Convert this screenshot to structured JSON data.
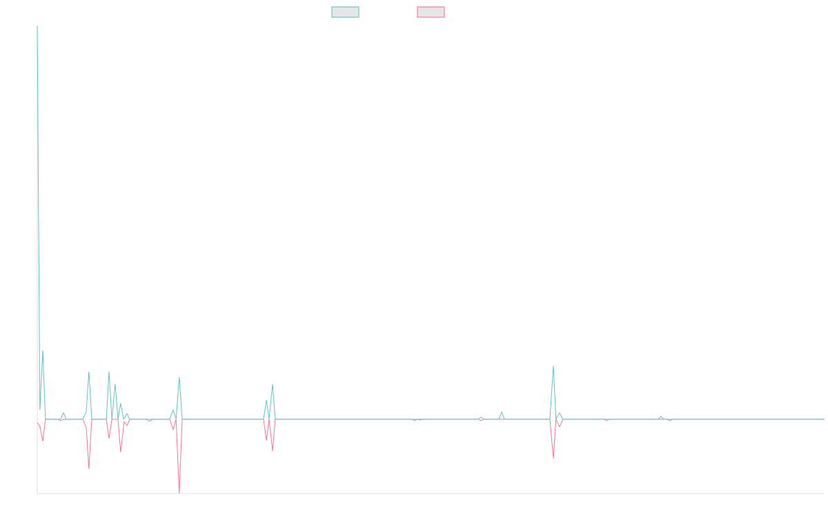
{
  "chart_data": {
    "type": "line",
    "xlim": [
      0,
      270
    ],
    "ylim": [
      -18.9,
      100
    ],
    "series": [
      {
        "color": "#4bc0c0",
        "x": [
          0,
          0.9,
          1.9,
          2.8,
          8.0,
          9.0,
          9.9,
          15.6,
          16.8,
          17.7,
          18.7,
          23.7,
          24.6,
          25.6,
          26.7,
          27.7,
          28.6,
          29.6,
          30.8,
          31.7,
          45.4,
          46.6,
          47.6,
          48.7,
          49.7,
          77.6,
          78.6,
          79.5,
          80.7,
          81.6,
          151.2,
          152.2,
          153.1,
          158.3,
          159.3,
          160.2,
          175.8,
          177.0,
          177.9,
          179.1,
          180.3,
          213.0,
          213.9,
          214.9,
          270
        ],
        "values": [
          100,
          2.3,
          17.5,
          0,
          0,
          1.6,
          0,
          0,
          1.8,
          12.1,
          0,
          0,
          12.1,
          0,
          8.9,
          0,
          4.0,
          0,
          1.4,
          0,
          0,
          2.3,
          0,
          10.7,
          0,
          0,
          4.9,
          0,
          8.9,
          0,
          0,
          0.5,
          0,
          0,
          1.8,
          0,
          0,
          13.5,
          0,
          1.6,
          0,
          0,
          0.7,
          0,
          0
        ]
      },
      {
        "color": "#ff6384",
        "x": [
          0,
          0.9,
          1.9,
          2.8,
          7.1,
          8.0,
          9.0,
          15.6,
          16.8,
          17.7,
          18.7,
          23.7,
          24.6,
          25.6,
          27.7,
          28.6,
          29.8,
          30.8,
          31.7,
          37.2,
          38.6,
          39.5,
          45.4,
          46.6,
          47.6,
          48.7,
          49.7,
          77.6,
          78.6,
          79.5,
          80.7,
          81.6,
          128.5,
          129.4,
          130.4,
          131.3,
          132.3,
          151.2,
          152.2,
          153.1,
          175.8,
          177.0,
          177.9,
          179.1,
          180.3,
          194.3,
          195.2,
          196.2,
          215.8,
          217.0,
          217.9,
          270
        ],
        "values": [
          -0.9,
          -1.8,
          -5.6,
          0,
          0,
          -0.4,
          0,
          0,
          -2.1,
          -12.6,
          0,
          0,
          -4.9,
          0,
          0,
          -8.4,
          -0.7,
          -1.6,
          0,
          0,
          -0.5,
          0,
          0,
          -2.6,
          0,
          -18.9,
          0,
          0,
          -5.4,
          0,
          -8.1,
          0,
          0,
          -0.4,
          0,
          -0.2,
          0,
          0,
          -0.4,
          0,
          0,
          -10.0,
          0,
          -1.9,
          0,
          0,
          -0.4,
          0,
          0,
          -0.4,
          0,
          0
        ]
      }
    ]
  }
}
